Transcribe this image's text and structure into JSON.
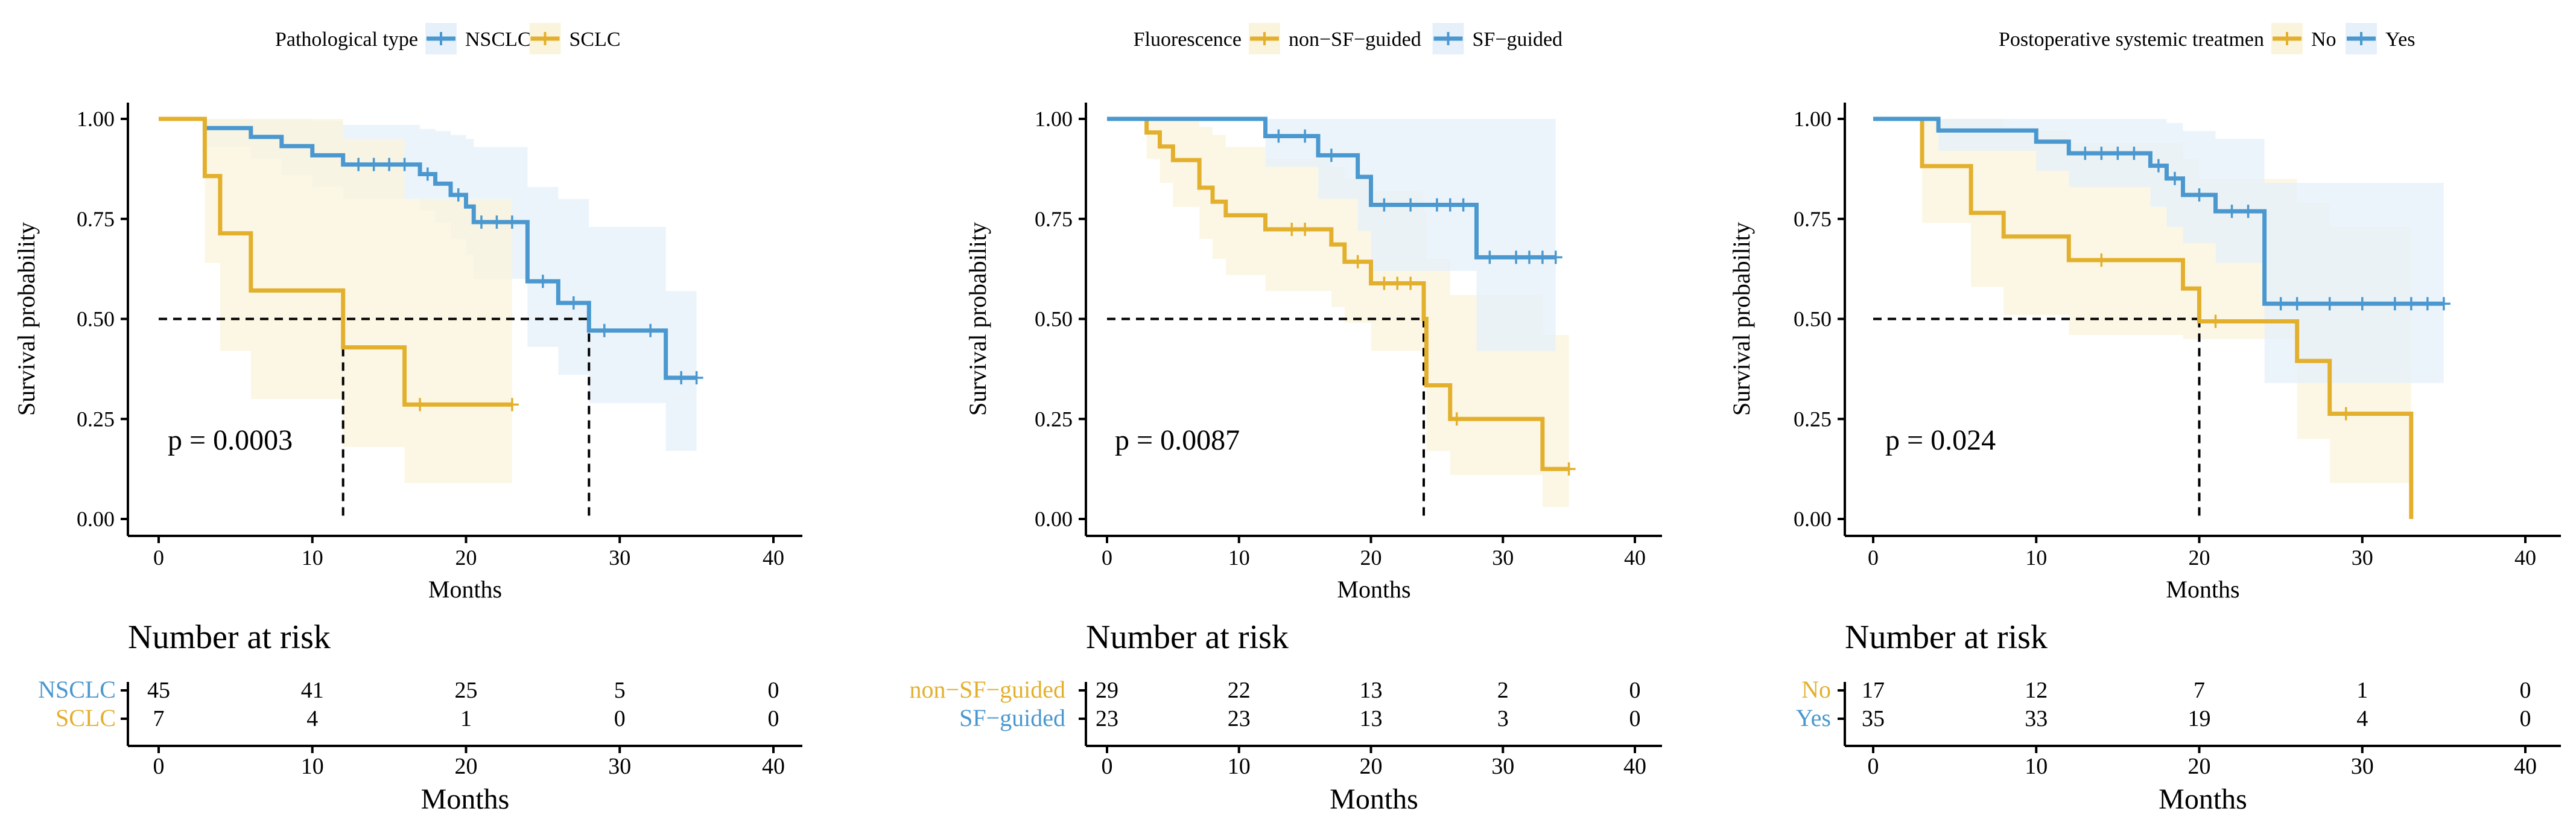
{
  "colors": {
    "gold": "#E3B02E",
    "blue": "#4A98CF",
    "gold_fill": "#FBF4DC",
    "blue_fill": "#E6F0FA",
    "axis": "#000000"
  },
  "common": {
    "ylabel": "Survival probability",
    "xlabel": "Months",
    "risk_title": "Number at risk",
    "y_ticks": [
      "0.00",
      "0.25",
      "0.50",
      "0.75",
      "1.00"
    ],
    "x_ticks": [
      "0",
      "10",
      "20",
      "30",
      "40"
    ]
  },
  "chart_data": [
    {
      "type": "line",
      "legend_title": "Pathological type",
      "pvalue": "p  =  0.0003",
      "xlim": [
        0,
        40
      ],
      "ylim": [
        0,
        1
      ],
      "median_lines": [
        12,
        28
      ],
      "series": [
        {
          "name": "NSCLC",
          "color": "blue",
          "steps": [
            [
              0,
              1.0
            ],
            [
              3,
              0.977
            ],
            [
              6,
              0.955
            ],
            [
              8,
              0.932
            ],
            [
              10,
              0.909
            ],
            [
              12,
              0.886
            ],
            [
              17,
              0.862
            ],
            [
              18,
              0.838
            ],
            [
              19,
              0.81
            ],
            [
              20,
              0.781
            ],
            [
              20.5,
              0.742
            ],
            [
              24,
              0.594
            ],
            [
              26,
              0.54
            ],
            [
              28,
              0.471
            ],
            [
              33,
              0.353
            ],
            [
              35,
              0.353
            ]
          ],
          "censors": [
            [
              13,
              0.886
            ],
            [
              14,
              0.886
            ],
            [
              15,
              0.886
            ],
            [
              16,
              0.886
            ],
            [
              17.5,
              0.862
            ],
            [
              19.5,
              0.81
            ],
            [
              21,
              0.742
            ],
            [
              22,
              0.742
            ],
            [
              23,
              0.742
            ],
            [
              25,
              0.594
            ],
            [
              27,
              0.54
            ],
            [
              29,
              0.471
            ],
            [
              32,
              0.471
            ],
            [
              34,
              0.353
            ],
            [
              35,
              0.353
            ]
          ],
          "ci": {
            "upper": [
              1,
              1,
              1,
              1,
              0.995,
              0.985,
              0.975,
              0.97,
              0.96,
              0.95,
              0.93,
              0.83,
              0.8,
              0.73,
              0.57,
              0.57
            ],
            "lower": [
              1,
              0.93,
              0.9,
              0.86,
              0.83,
              0.8,
              0.77,
              0.74,
              0.7,
              0.66,
              0.6,
              0.43,
              0.36,
              0.29,
              0.17,
              0.17
            ]
          },
          "risk": [
            "45",
            "41",
            "25",
            "5",
            "0"
          ]
        },
        {
          "name": "SCLC",
          "color": "gold",
          "steps": [
            [
              0,
              1.0
            ],
            [
              3,
              0.857
            ],
            [
              4,
              0.714
            ],
            [
              6,
              0.571
            ],
            [
              12,
              0.429
            ],
            [
              16,
              0.286
            ],
            [
              23,
              0.286
            ]
          ],
          "censors": [
            [
              17,
              0.286
            ],
            [
              23,
              0.286
            ]
          ],
          "ci": {
            "upper": [
              1,
              1,
              1,
              1,
              0.95,
              0.8,
              0.8
            ],
            "lower": [
              1,
              0.64,
              0.42,
              0.3,
              0.18,
              0.09,
              0.09
            ]
          },
          "risk": [
            "7",
            "4",
            "1",
            "0",
            "0"
          ]
        }
      ]
    },
    {
      "type": "line",
      "legend_title": "Fluorescence",
      "pvalue": "p  =  0.0087",
      "xlim": [
        0,
        40
      ],
      "ylim": [
        0,
        1
      ],
      "median_lines": [
        24
      ],
      "series": [
        {
          "name": "non−SF−guided",
          "color": "gold",
          "steps": [
            [
              0,
              1.0
            ],
            [
              3,
              0.966
            ],
            [
              4,
              0.931
            ],
            [
              5,
              0.897
            ],
            [
              7,
              0.828
            ],
            [
              8,
              0.793
            ],
            [
              9,
              0.759
            ],
            [
              12,
              0.724
            ],
            [
              17,
              0.686
            ],
            [
              18,
              0.643
            ],
            [
              20,
              0.589
            ],
            [
              24,
              0.5
            ],
            [
              24.2,
              0.334
            ],
            [
              26,
              0.25
            ],
            [
              33,
              0.125
            ],
            [
              35,
              0.125
            ]
          ],
          "censors": [
            [
              14,
              0.724
            ],
            [
              15,
              0.724
            ],
            [
              19,
              0.643
            ],
            [
              21,
              0.589
            ],
            [
              22,
              0.589
            ],
            [
              23,
              0.589
            ],
            [
              26.5,
              0.25
            ],
            [
              35,
              0.125
            ]
          ],
          "ci": {
            "upper": [
              1,
              1,
              1,
              1,
              0.98,
              0.96,
              0.93,
              0.9,
              0.88,
              0.85,
              0.82,
              0.77,
              0.65,
              0.56,
              0.46,
              0.46
            ],
            "lower": [
              1,
              0.9,
              0.84,
              0.78,
              0.7,
              0.65,
              0.61,
              0.57,
              0.53,
              0.49,
              0.42,
              0.33,
              0.17,
              0.11,
              0.03,
              0.03
            ]
          },
          "risk": [
            "29",
            "22",
            "13",
            "2",
            "0"
          ]
        },
        {
          "name": "SF−guided",
          "color": "blue",
          "steps": [
            [
              0,
              1.0
            ],
            [
              12,
              0.957
            ],
            [
              16,
              0.909
            ],
            [
              19,
              0.855
            ],
            [
              20,
              0.785
            ],
            [
              28,
              0.654
            ],
            [
              34,
              0.654
            ]
          ],
          "censors": [
            [
              13,
              0.957
            ],
            [
              15,
              0.957
            ],
            [
              17,
              0.909
            ],
            [
              21,
              0.785
            ],
            [
              23,
              0.785
            ],
            [
              25,
              0.785
            ],
            [
              26,
              0.785
            ],
            [
              27,
              0.785
            ],
            [
              29,
              0.654
            ],
            [
              31,
              0.654
            ],
            [
              32,
              0.654
            ],
            [
              33,
              0.654
            ],
            [
              34,
              0.654
            ]
          ],
          "ci": {
            "upper": [
              1,
              1,
              1,
              1,
              1,
              1,
              1
            ],
            "lower": [
              1,
              0.88,
              0.8,
              0.72,
              0.62,
              0.42,
              0.42
            ]
          },
          "risk": [
            "23",
            "23",
            "13",
            "3",
            "0"
          ]
        }
      ]
    },
    {
      "type": "line",
      "legend_title": "Postoperative systemic treatmen",
      "pvalue": "p  =  0.024",
      "xlim": [
        0,
        40
      ],
      "ylim": [
        0,
        1
      ],
      "median_lines": [
        20
      ],
      "series": [
        {
          "name": "No",
          "color": "gold",
          "steps": [
            [
              0,
              1.0
            ],
            [
              3,
              0.882
            ],
            [
              6,
              0.765
            ],
            [
              8,
              0.706
            ],
            [
              12,
              0.647
            ],
            [
              19,
              0.576
            ],
            [
              20,
              0.494
            ],
            [
              26,
              0.395
            ],
            [
              28,
              0.263
            ],
            [
              33,
              0.0
            ]
          ],
          "censors": [
            [
              14,
              0.647
            ],
            [
              21,
              0.494
            ],
            [
              29,
              0.263
            ]
          ],
          "ci": {
            "upper": [
              1,
              1,
              1,
              0.97,
              0.94,
              0.9,
              0.85,
              0.79,
              0.73,
              0.73
            ],
            "lower": [
              1,
              0.74,
              0.58,
              0.51,
              0.46,
              0.45,
              0.45,
              0.2,
              0.09,
              0.09
            ]
          },
          "risk": [
            "17",
            "12",
            "7",
            "1",
            "0"
          ]
        },
        {
          "name": "Yes",
          "color": "blue",
          "steps": [
            [
              0,
              1.0
            ],
            [
              4,
              0.971
            ],
            [
              10,
              0.943
            ],
            [
              12,
              0.914
            ],
            [
              17,
              0.883
            ],
            [
              18,
              0.851
            ],
            [
              19,
              0.81
            ],
            [
              21,
              0.769
            ],
            [
              24,
              0.538
            ],
            [
              35,
              0.538
            ]
          ],
          "censors": [
            [
              13,
              0.914
            ],
            [
              14,
              0.914
            ],
            [
              15,
              0.914
            ],
            [
              16,
              0.914
            ],
            [
              17.5,
              0.883
            ],
            [
              18.5,
              0.851
            ],
            [
              20,
              0.81
            ],
            [
              22,
              0.769
            ],
            [
              23,
              0.769
            ],
            [
              25,
              0.538
            ],
            [
              26,
              0.538
            ],
            [
              28,
              0.538
            ],
            [
              30,
              0.538
            ],
            [
              32,
              0.538
            ],
            [
              33,
              0.538
            ],
            [
              34,
              0.538
            ],
            [
              35,
              0.538
            ]
          ],
          "ci": {
            "upper": [
              1,
              1,
              1,
              1,
              1,
              0.99,
              0.97,
              0.95,
              0.84,
              0.84
            ],
            "lower": [
              1,
              0.92,
              0.87,
              0.83,
              0.78,
              0.73,
              0.69,
              0.64,
              0.34,
              0.34
            ]
          },
          "risk": [
            "35",
            "33",
            "19",
            "4",
            "0"
          ]
        }
      ]
    }
  ]
}
